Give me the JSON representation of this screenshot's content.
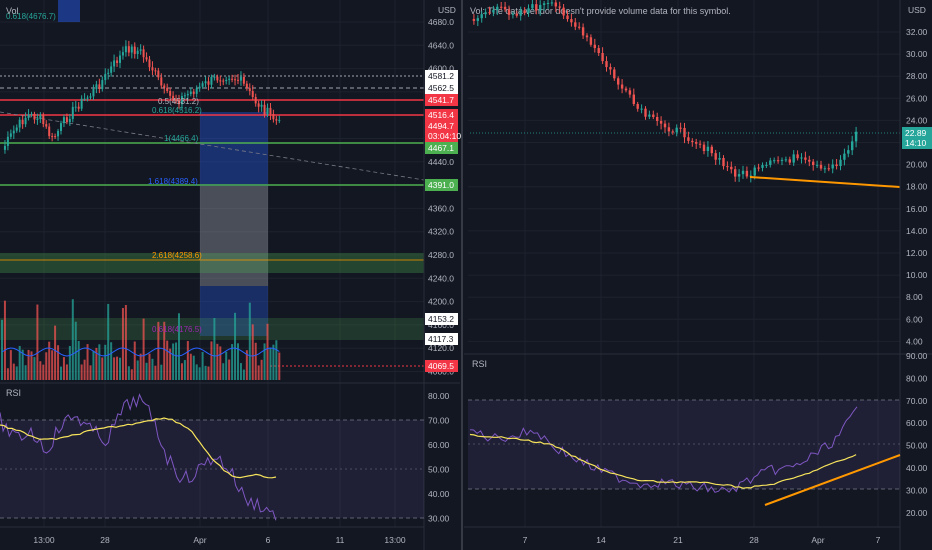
{
  "left_chart": {
    "vol_label": "Vol",
    "currency": "USD",
    "price_axis": [
      "4680.0",
      "4640.0",
      "4600.0",
      "4560.0",
      "4520.0",
      "4480.0",
      "4440.0",
      "4400.0",
      "4360.0",
      "4320.0",
      "4280.0",
      "4240.0",
      "4200.0",
      "4160.0",
      "4120.0",
      "4080.0"
    ],
    "time_axis": [
      "13:00",
      "28",
      "Apr",
      "6",
      "11",
      "13:00"
    ],
    "fib_labels": [
      {
        "text": "0.618(4676.7)",
        "color": "#26a69a"
      },
      {
        "text": "0.5(4531.2)",
        "color": "#b2b5be"
      },
      {
        "text": "0.618(4516.2)",
        "color": "#26a69a"
      },
      {
        "text": "1(4466.4)",
        "color": "#26a69a"
      },
      {
        "text": "1.618(4389.4)",
        "color": "#2962ff"
      },
      {
        "text": "2.618(4258.6)",
        "color": "#ff9800"
      },
      {
        "text": "0.618(4176.5)",
        "color": "#9c27b0"
      }
    ],
    "price_tags": [
      {
        "text": "4581.2",
        "bg": "#ffffff",
        "fg": "#131722"
      },
      {
        "text": "4562.5",
        "bg": "#ffffff",
        "fg": "#131722"
      },
      {
        "text": "4541.7",
        "bg": "#f23645",
        "fg": "#ffffff"
      },
      {
        "text": "4516.4",
        "bg": "#f23645",
        "fg": "#ffffff"
      },
      {
        "text": "4494.7",
        "bg": "#f23645",
        "fg": "#ffffff"
      },
      {
        "text": "03:04:10",
        "bg": "#f23645",
        "fg": "#ffffff"
      },
      {
        "text": "4467.1",
        "bg": "#4caf50",
        "fg": "#ffffff"
      },
      {
        "text": "4391.0",
        "bg": "#4caf50",
        "fg": "#ffffff"
      },
      {
        "text": "4153.2",
        "bg": "#ffffff",
        "fg": "#131722"
      },
      {
        "text": "4117.3",
        "bg": "#ffffff",
        "fg": "#131722"
      },
      {
        "text": "4069.5",
        "bg": "#f23645",
        "fg": "#ffffff"
      }
    ],
    "rsi_label": "RSI",
    "rsi_axis": [
      "80.00",
      "70.00",
      "60.00",
      "50.00",
      "40.00",
      "30.00"
    ]
  },
  "right_chart": {
    "notice": "Vol: The data vendor doesn't provide volume data for this symbol.",
    "currency": "USD",
    "price_axis": [
      "32.00",
      "30.00",
      "28.00",
      "26.00",
      "24.00",
      "22.00",
      "20.00",
      "18.00",
      "16.00",
      "14.00",
      "12.00",
      "10.00",
      "8.00",
      "6.00",
      "4.00"
    ],
    "last_price": "22.89",
    "countdown": "14:10",
    "time_axis": [
      "7",
      "14",
      "21",
      "28",
      "Apr",
      "7"
    ],
    "rsi_label": "RSI",
    "rsi_axis": [
      "90.00",
      "80.00",
      "70.00",
      "60.00",
      "50.00",
      "40.00",
      "30.00",
      "20.00"
    ]
  },
  "colors": {
    "background": "#131722",
    "up": "#26a69a",
    "down": "#ef5350",
    "rsi_line": "#7e57c2",
    "rsi_ma": "#f7e45c",
    "trendline": "#ff9800",
    "grid": "#1e222d"
  }
}
